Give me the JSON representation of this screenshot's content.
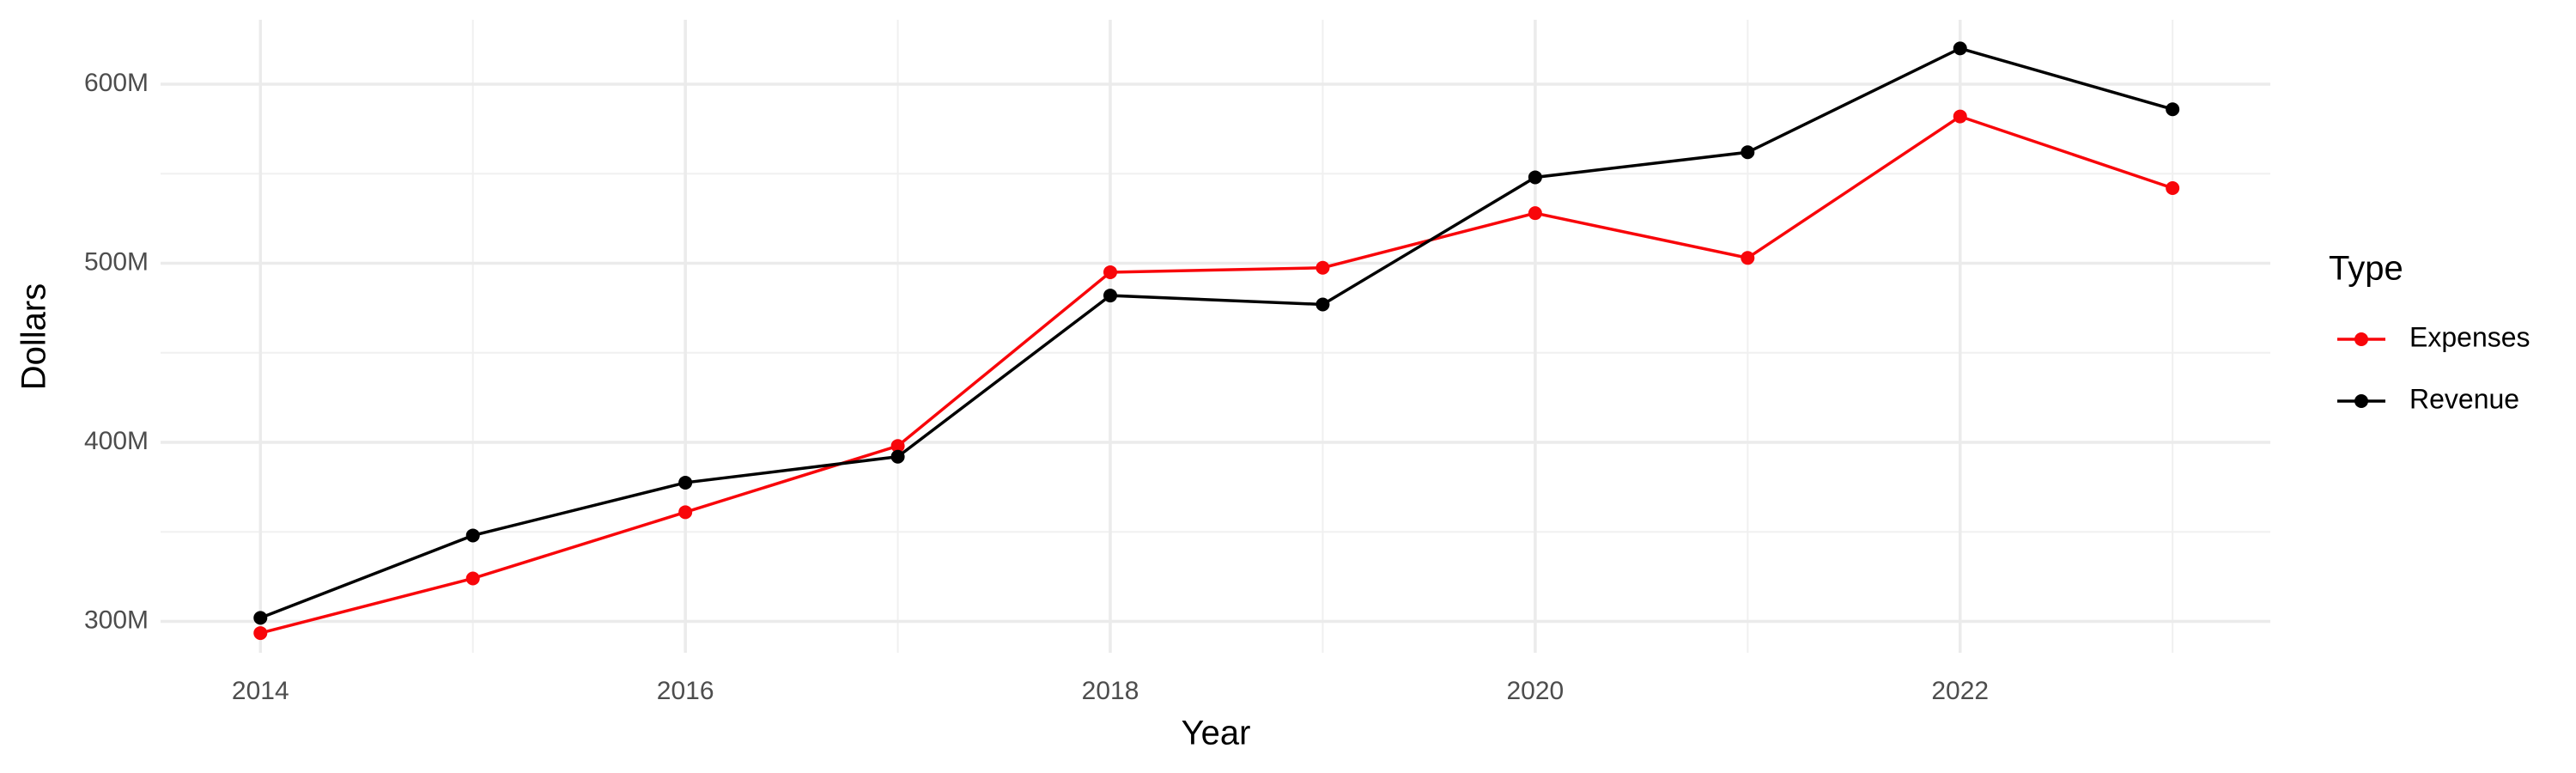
{
  "chart_data": {
    "type": "line",
    "x_label": "Year",
    "y_label": "Dollars",
    "legend_title": "Type",
    "legend": "right",
    "grid": true,
    "x": [
      2014,
      2015,
      2016,
      2017,
      2018,
      2019,
      2020,
      2021,
      2022,
      2023
    ],
    "series": [
      {
        "name": "Expenses",
        "color": "#f8060a",
        "values": [
          293500000,
          324000000,
          361000000,
          398000000,
          495000000,
          497500000,
          528000000,
          503000000,
          582000000,
          542000000
        ]
      },
      {
        "name": "Revenue",
        "color": "#000000",
        "values": [
          302000000,
          348000000,
          377500000,
          392000000,
          482000000,
          477000000,
          548000000,
          562000000,
          620000000,
          586000000
        ]
      }
    ],
    "xlim": [
      2013.53,
      2023.46
    ],
    "xticks": [
      2014,
      2016,
      2018,
      2020,
      2022
    ],
    "ylim": [
      282500000,
      636000000
    ],
    "yticks": [
      {
        "value": 300000000,
        "label": "300M"
      },
      {
        "value": 400000000,
        "label": "400M"
      },
      {
        "value": 500000000,
        "label": "500M"
      },
      {
        "value": 600000000,
        "label": "600M"
      }
    ]
  }
}
